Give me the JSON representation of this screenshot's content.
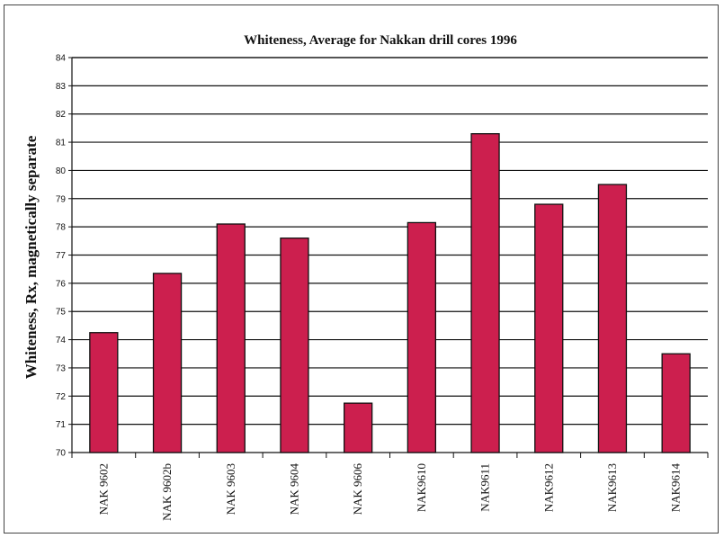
{
  "chart_data": {
    "type": "bar",
    "title": "Whiteness, Average for Nakkan drill cores 1996",
    "ylabel": "Whiteness, Rx, magnetically separate",
    "xlabel": "",
    "categories": [
      "NAK 9602",
      "NAK 9602b",
      "NAK 9603",
      "NAK 9604",
      "NAK 9606",
      "NAK9610",
      "NAK9611",
      "NAK9612",
      "NAK9613",
      "NAK9614"
    ],
    "values": [
      74.25,
      76.35,
      78.1,
      77.6,
      71.75,
      78.15,
      81.3,
      78.8,
      79.5,
      73.5
    ],
    "ylim": [
      70,
      84
    ],
    "yticks": [
      "70",
      "71",
      "72",
      "73",
      "74",
      "75",
      "76",
      "77",
      "78",
      "79",
      "80",
      "81",
      "82",
      "83",
      "84"
    ],
    "grid": true,
    "legend": "none",
    "bar_color": "#cc1f4e"
  }
}
